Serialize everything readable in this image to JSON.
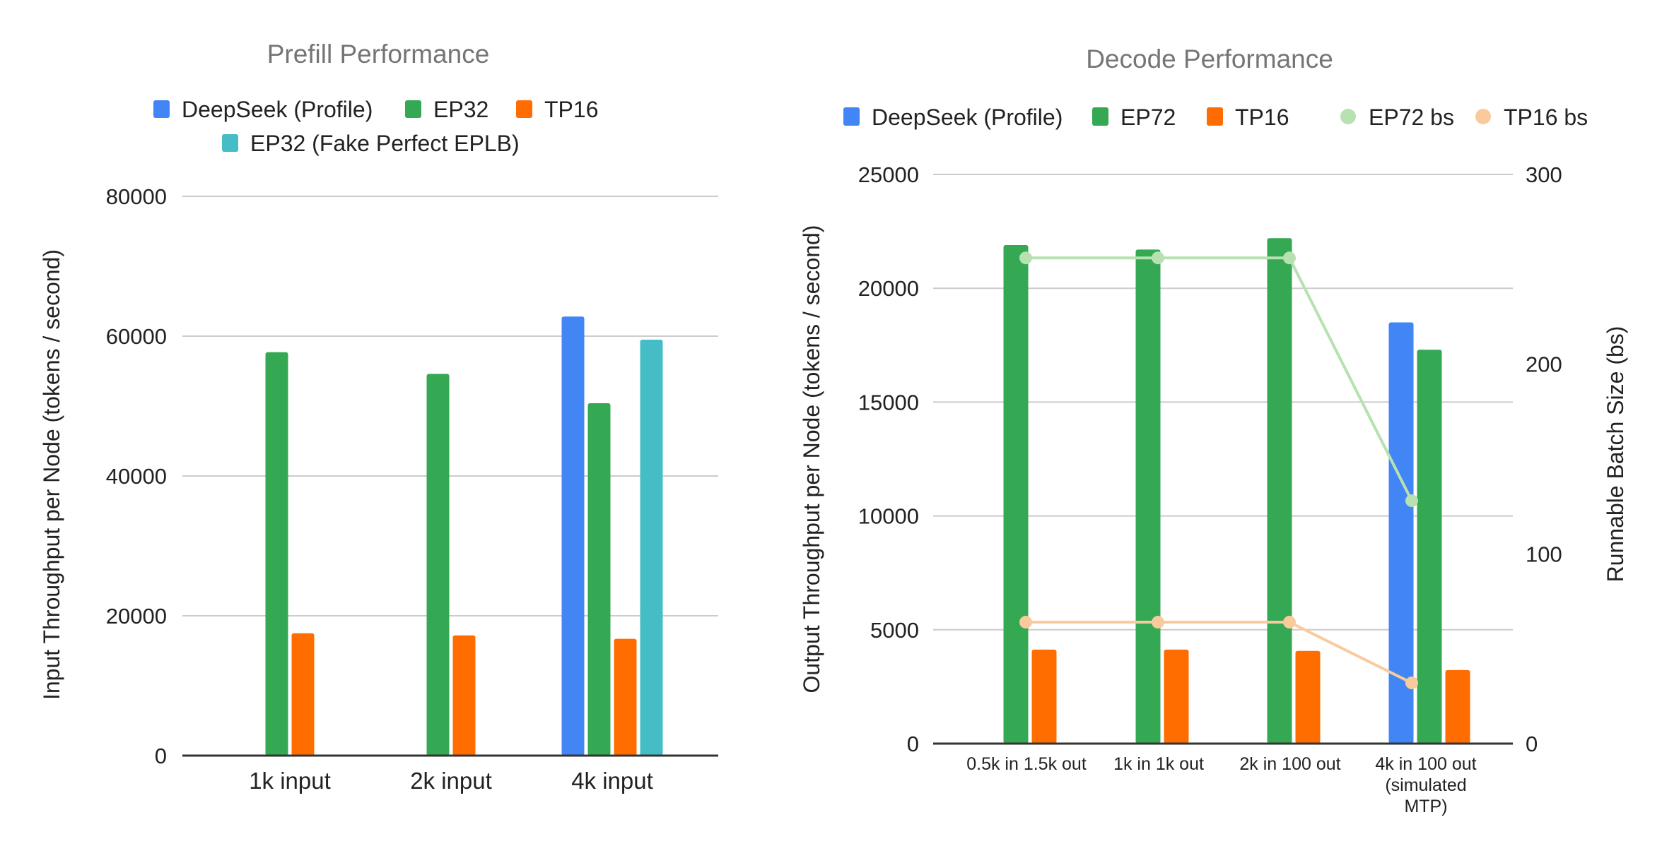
{
  "chart_data": [
    {
      "type": "bar",
      "title": "Prefill Performance",
      "xlabel": "",
      "ylabel": "Input Throughput per Node (tokens / second)",
      "ylim": [
        0,
        80000
      ],
      "yticks": [
        0,
        20000,
        40000,
        60000,
        80000
      ],
      "grid": true,
      "legend_position": "top",
      "categories": [
        "1k input",
        "2k input",
        "4k input"
      ],
      "series": [
        {
          "name": "DeepSeek (Profile)",
          "color": "#4285f4",
          "values": [
            null,
            null,
            62800
          ]
        },
        {
          "name": "EP32",
          "color": "#34a853",
          "values": [
            57700,
            54600,
            50400
          ]
        },
        {
          "name": "TP16",
          "color": "#ff6d01",
          "values": [
            17500,
            17200,
            16700
          ]
        },
        {
          "name": "EP32 (Fake Perfect EPLB)",
          "color": "#46bdc6",
          "values": [
            null,
            null,
            59500
          ]
        }
      ]
    },
    {
      "type": "bar",
      "title": "Decode Performance",
      "xlabel": "",
      "ylabel": "Output Throughput per Node (tokens / second)",
      "y2label": "Runnable Batch Size (bs)",
      "ylim": [
        0,
        25000
      ],
      "y2lim": [
        0,
        300
      ],
      "yticks": [
        0,
        5000,
        10000,
        15000,
        20000,
        25000
      ],
      "y2ticks": [
        0,
        100,
        200,
        300
      ],
      "grid": true,
      "legend_position": "top",
      "categories": [
        "0.5k in 1.5k out",
        "1k in 1k out",
        "2k in 100 out",
        "4k in 100 out (simulated MTP)"
      ],
      "category_lines": [
        [
          "0.5k in 1.5k out"
        ],
        [
          "1k in 1k out"
        ],
        [
          "2k in 100 out"
        ],
        [
          "4k in 100 out",
          "(simulated",
          "MTP)"
        ]
      ],
      "series": [
        {
          "name": "DeepSeek (Profile)",
          "kind": "bar",
          "axis": "left",
          "color": "#4285f4",
          "values": [
            null,
            null,
            null,
            18500
          ]
        },
        {
          "name": "EP72",
          "kind": "bar",
          "axis": "left",
          "color": "#34a853",
          "values": [
            21900,
            21700,
            22200,
            17300
          ]
        },
        {
          "name": "TP16",
          "kind": "bar",
          "axis": "left",
          "color": "#ff6d01",
          "values": [
            4130,
            4130,
            4070,
            3230
          ]
        },
        {
          "name": "EP72 bs",
          "kind": "line",
          "axis": "right",
          "color": "#b7e1b0",
          "values": [
            256,
            256,
            256,
            128
          ]
        },
        {
          "name": "TP16 bs",
          "kind": "line",
          "axis": "right",
          "color": "#f9cb9c",
          "values": [
            64,
            64,
            64,
            32
          ]
        }
      ]
    }
  ]
}
